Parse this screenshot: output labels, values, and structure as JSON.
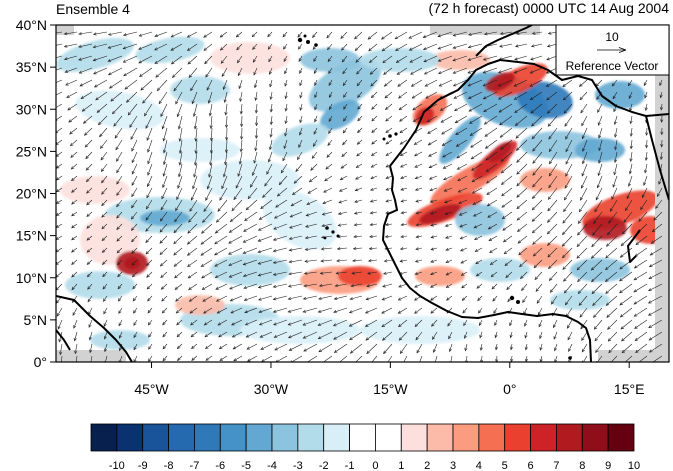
{
  "figure": {
    "title_left": "Ensemble 4",
    "title_right": "(72 h forecast) 0000 UTC 14 Aug 2004"
  },
  "map": {
    "lon_range": [
      -57,
      20
    ],
    "lat_range": [
      0,
      40
    ],
    "lat_ticks": [
      {
        "value": 40,
        "label": "40°N"
      },
      {
        "value": 35,
        "label": "35°N"
      },
      {
        "value": 30,
        "label": "30°N"
      },
      {
        "value": 25,
        "label": "25°N"
      },
      {
        "value": 20,
        "label": "20°N"
      },
      {
        "value": 15,
        "label": "15°N"
      },
      {
        "value": 10,
        "label": "10°N"
      },
      {
        "value": 5,
        "label": "5°N"
      },
      {
        "value": 0,
        "label": "0°"
      }
    ],
    "lon_ticks": [
      {
        "value": -45,
        "label": "45°W"
      },
      {
        "value": -30,
        "label": "30°W"
      },
      {
        "value": -15,
        "label": "15°W"
      },
      {
        "value": 0,
        "label": "0°"
      },
      {
        "value": 15,
        "label": "15°E"
      }
    ],
    "reference_vector": {
      "value_label": "10",
      "label": "Reference Vector"
    }
  },
  "colorbar": {
    "ticks": [
      "-10",
      "-9",
      "-8",
      "-7",
      "-6",
      "-5",
      "-4",
      "-3",
      "-2",
      "-1",
      "0",
      "1",
      "2",
      "3",
      "4",
      "5",
      "6",
      "7",
      "8",
      "9",
      "10"
    ],
    "colors": [
      "#08204d",
      "#0b3270",
      "#19539a",
      "#2569ae",
      "#2f79b9",
      "#4492c7",
      "#62a8d2",
      "#8cc3de",
      "#b2dcea",
      "#d9eff8",
      "#ffffff",
      "#ffffff",
      "#fde0dd",
      "#fcbba8",
      "#fb9b7f",
      "#f56f53",
      "#ea402f",
      "#cd2227",
      "#b11a1f",
      "#8f0e1a",
      "#650010"
    ]
  }
}
